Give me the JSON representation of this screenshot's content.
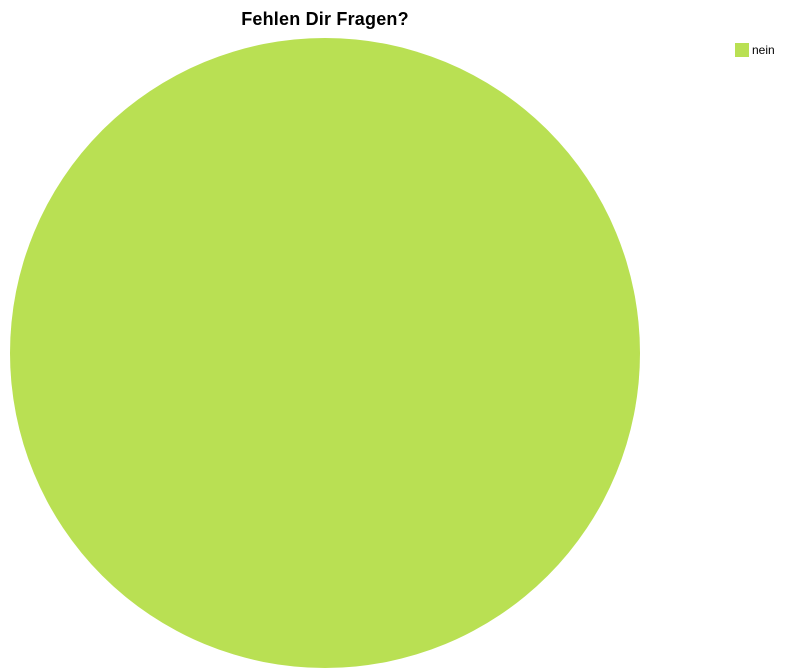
{
  "chart_data": {
    "type": "pie",
    "title": "Fehlen Dir Fragen?",
    "slices": [
      {
        "label": "nein",
        "value": 100,
        "color": "#b9e053"
      }
    ],
    "legend": {
      "placement": "top-right",
      "items": [
        {
          "label": "nein",
          "color": "#b9e053"
        }
      ]
    }
  }
}
